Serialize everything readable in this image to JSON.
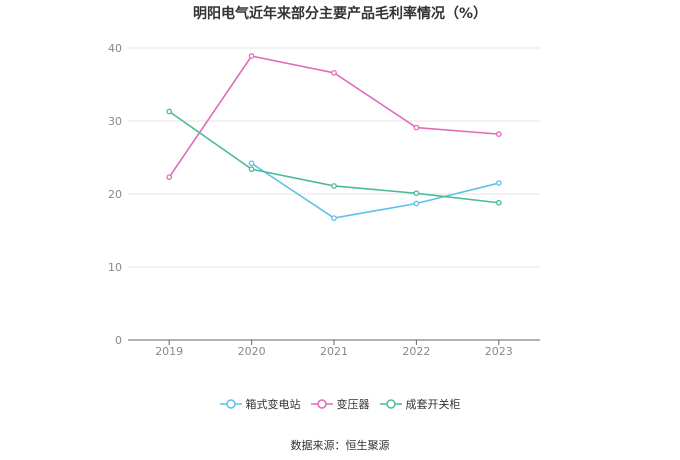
{
  "chart_data": {
    "type": "line",
    "title": "明阳电气近年来部分主要产品毛利率情况（%）",
    "x": [
      "2019",
      "2020",
      "2021",
      "2022",
      "2023"
    ],
    "ylim": [
      0,
      40
    ],
    "yticks": [
      0,
      10,
      20,
      30,
      40
    ],
    "grid": true,
    "legend_position": "bottom",
    "series": [
      {
        "name": "箱式变电站",
        "color": "#5bc0eb",
        "values": [
          null,
          24.2,
          16.7,
          18.7,
          21.5
        ]
      },
      {
        "name": "变压器",
        "color": "#e06bb8",
        "values": [
          22.3,
          38.9,
          36.6,
          29.1,
          28.2
        ]
      },
      {
        "name": "成套开关柜",
        "color": "#4dbb9b",
        "values": [
          31.3,
          23.4,
          21.1,
          20.1,
          18.8
        ]
      }
    ]
  },
  "source": "数据来源：恒生聚源"
}
